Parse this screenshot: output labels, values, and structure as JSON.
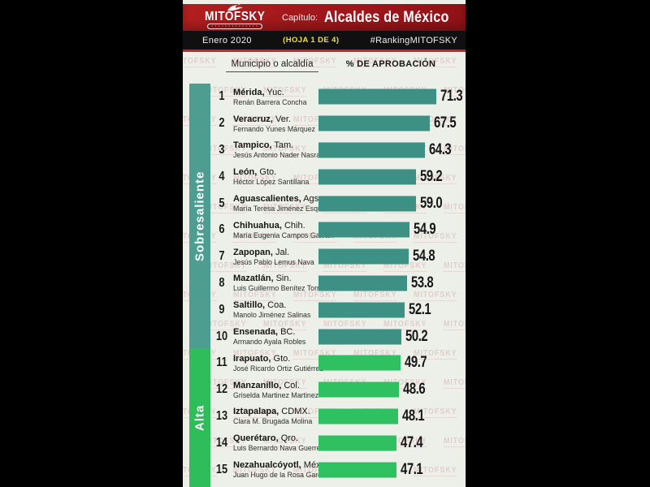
{
  "banner": {
    "logo_text": "MITOFSKY",
    "logo_tagline": "▪ ▪ ▪ ▪ ▪ ▪ ▪ ▪ ▪ ▪ ▪ ▪ ▪ ▪",
    "chapter_label": "Capítulo:",
    "chapter_title": "Alcaldes de México",
    "date": "Enero 2020",
    "sheet_label": "(HOJA 1 DE 4)",
    "hashtag": "#RankingMITOFSKY"
  },
  "table_headers": {
    "municipality": "Municipio o alcaldía",
    "approval": "% DE APROBACIÓN"
  },
  "sections": [
    {
      "label": "Sobresaliente",
      "sidebar_color": "#4d9e90",
      "bar_color": "#3c9184"
    },
    {
      "label": "Alta",
      "sidebar_color": "#2ebd5a",
      "bar_color": "#2fc161"
    }
  ],
  "watermark_text": "MITOFSKY",
  "colors": {
    "banner_red": "#a3181c",
    "strip_black": "#101010",
    "accent_yellow": "#efe23a",
    "rule_red": "#c1272d",
    "card_bg": "#edefe9"
  },
  "chart_data": {
    "type": "bar",
    "orientation": "horizontal",
    "title": "Alcaldes de México",
    "subtitle": "% DE APROBACIÓN — Enero 2020 (Hoja 1 de 4)",
    "xlabel": "% de aprobación",
    "xlim": [
      0,
      75
    ],
    "legend_position": "left-sidebar",
    "grid": false,
    "categories": [
      "Mérida, Yuc.",
      "Veracruz, Ver.",
      "Tampico, Tam.",
      "León, Gto.",
      "Aguascalientes, Ags.",
      "Chihuahua, Chih.",
      "Zapopan, Jal.",
      "Mazatlán, Sin.",
      "Saltillo, Coa.",
      "Ensenada, BC.",
      "Irapuato, Gto.",
      "Manzanillo, Col.",
      "Iztapalapa, CDMX.",
      "Querétaro, Qro.",
      "Nezahualcóyotl, Méx."
    ],
    "values": [
      71.3,
      67.5,
      64.3,
      59.2,
      59.0,
      54.9,
      54.8,
      53.8,
      52.1,
      50.2,
      49.7,
      48.6,
      48.1,
      47.4,
      47.1
    ],
    "rows": [
      {
        "rank": 1,
        "city": "Mérida",
        "state": "Yuc.",
        "mayor": "Renán Barrera Concha",
        "value": 71.3,
        "value_label": "71.3",
        "section": 0
      },
      {
        "rank": 2,
        "city": "Veracruz",
        "state": "Ver.",
        "mayor": "Fernando Yunes Márquez",
        "value": 67.5,
        "value_label": "67.5",
        "section": 0
      },
      {
        "rank": 3,
        "city": "Tampico",
        "state": "Tam.",
        "mayor": "Jesús Antonio Nader Nasrallah",
        "value": 64.3,
        "value_label": "64.3",
        "section": 0
      },
      {
        "rank": 4,
        "city": "León",
        "state": "Gto.",
        "mayor": "Héctor López Santillana",
        "value": 59.2,
        "value_label": "59.2",
        "section": 0
      },
      {
        "rank": 5,
        "city": "Aguascalientes",
        "state": "Ags.",
        "mayor": "María Teresa Jiménez Esquivel",
        "value": 59.0,
        "value_label": "59.0",
        "section": 0
      },
      {
        "rank": 6,
        "city": "Chihuahua",
        "state": "Chih.",
        "mayor": "María Eugenia Campos Galván",
        "value": 54.9,
        "value_label": "54.9",
        "section": 0
      },
      {
        "rank": 7,
        "city": "Zapopan",
        "state": "Jal.",
        "mayor": "Jesús Pablo Lemus Nava",
        "value": 54.8,
        "value_label": "54.8",
        "section": 0
      },
      {
        "rank": 8,
        "city": "Mazatlán",
        "state": "Sin.",
        "mayor": "Luis Guillermo Benítez Torres",
        "value": 53.8,
        "value_label": "53.8",
        "section": 0
      },
      {
        "rank": 9,
        "city": "Saltillo",
        "state": "Coa.",
        "mayor": "Manolo Jiménez Salinas",
        "value": 52.1,
        "value_label": "52.1",
        "section": 0
      },
      {
        "rank": 10,
        "city": "Ensenada",
        "state": "BC.",
        "mayor": "Armando Ayala Robles",
        "value": 50.2,
        "value_label": "50.2",
        "section": 0
      },
      {
        "rank": 11,
        "city": "Irapuato",
        "state": "Gto.",
        "mayor": "José Ricardo Ortiz Gutiérrez",
        "value": 49.7,
        "value_label": "49.7",
        "section": 1
      },
      {
        "rank": 12,
        "city": "Manzanillo",
        "state": "Col.",
        "mayor": "Griselda Martinez Martinez",
        "value": 48.6,
        "value_label": "48.6",
        "section": 1
      },
      {
        "rank": 13,
        "city": "Iztapalapa",
        "state": "CDMX.",
        "mayor": "Clara M. Brugada Molina",
        "value": 48.1,
        "value_label": "48.1",
        "section": 1
      },
      {
        "rank": 14,
        "city": "Querétaro",
        "state": "Qro.",
        "mayor": "Luis Bernardo Nava Guerrero",
        "value": 47.4,
        "value_label": "47.4",
        "section": 1
      },
      {
        "rank": 15,
        "city": "Nezahualcóyotl",
        "state": "Méx.",
        "mayor": "Juan Hugo de la Rosa García",
        "value": 47.1,
        "value_label": "47.1",
        "section": 1
      }
    ]
  }
}
